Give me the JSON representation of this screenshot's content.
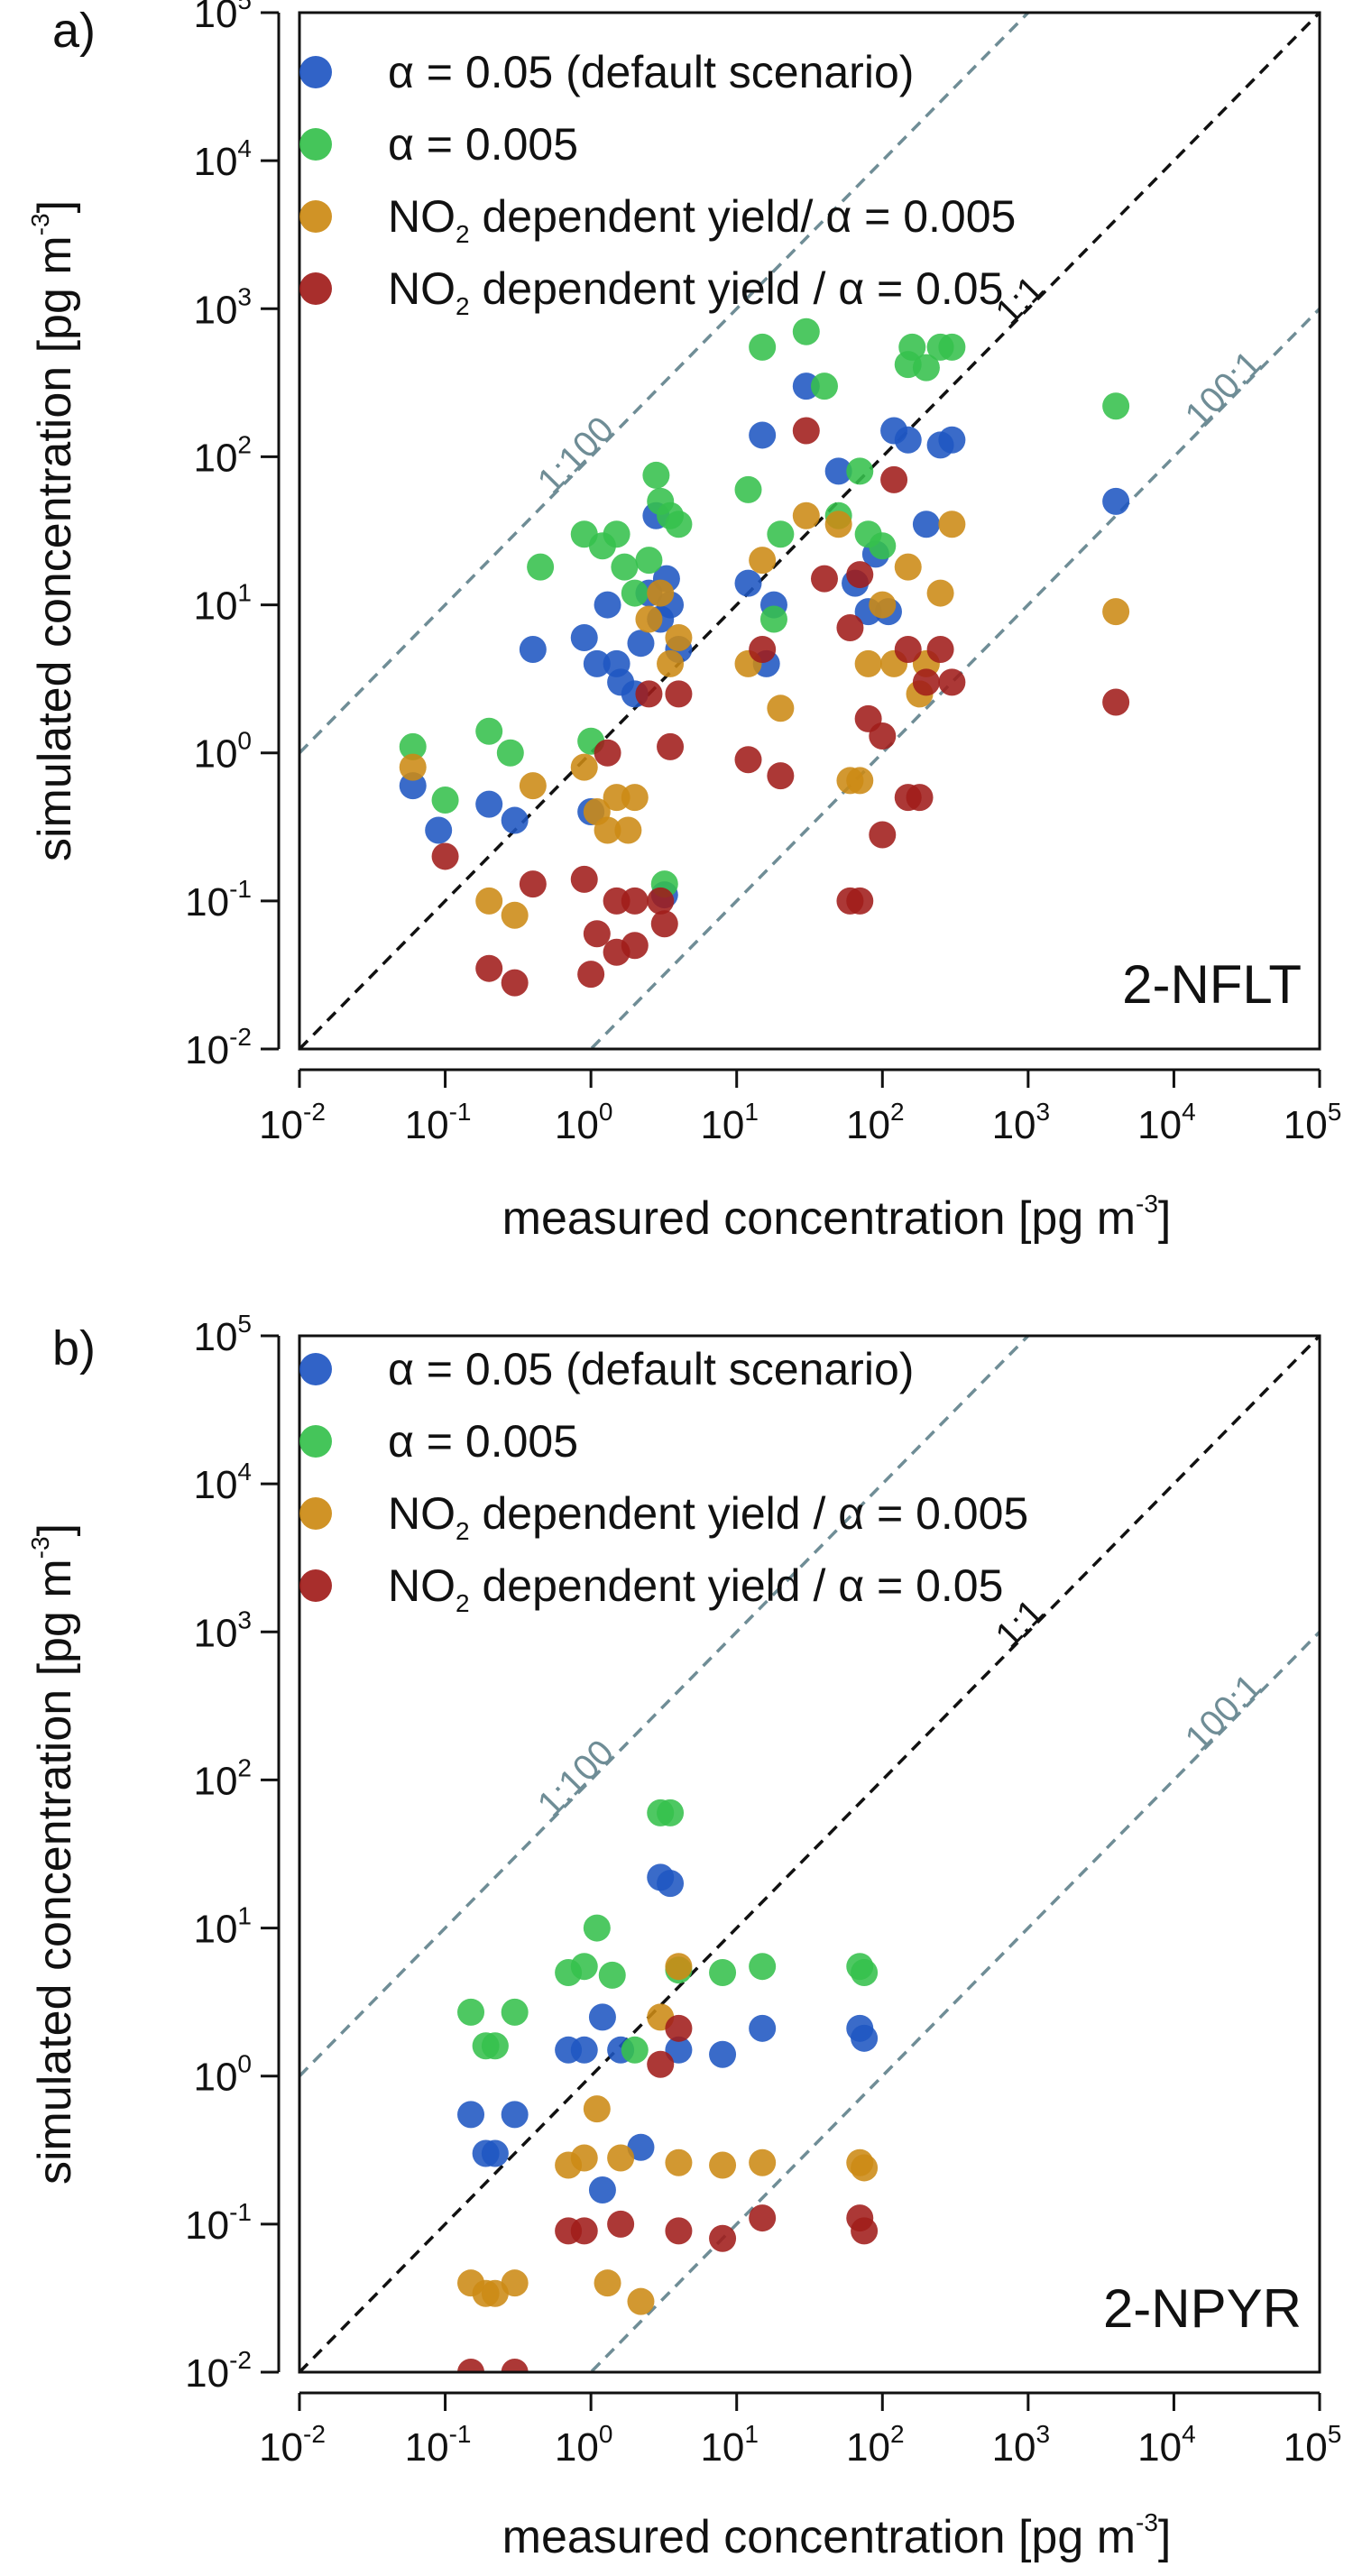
{
  "series_colors": {
    "default": "#1f56c2",
    "alpha005": "#35c04c",
    "no2_005": "#cc8a14",
    "no2_05": "#a11c1a"
  },
  "ref_line_colors": {
    "one_to_one": "#111111",
    "hundred": "#6f8d96"
  },
  "chart_data": [
    {
      "type": "scatter",
      "panel_label": "a)",
      "compound": "2-NFLT",
      "xlabel_main": "measured concentration [pg m",
      "xlabel_sup": "-3",
      "xlabel_end": "]",
      "ylabel_main": "simulated concentration [pg m",
      "ylabel_sup": "-3",
      "ylabel_end": "]",
      "xscale": "log",
      "yscale": "log",
      "xlim": [
        0.01,
        100000
      ],
      "ylim": [
        0.01,
        100000
      ],
      "tick_labels": [
        {
          "base": "10",
          "exp": "-2"
        },
        {
          "base": "10",
          "exp": "-1"
        },
        {
          "base": "10",
          "exp": "0"
        },
        {
          "base": "10",
          "exp": "1"
        },
        {
          "base": "10",
          "exp": "2"
        },
        {
          "base": "10",
          "exp": "3"
        },
        {
          "base": "10",
          "exp": "4"
        },
        {
          "base": "10",
          "exp": "5"
        }
      ],
      "ref_lines": [
        {
          "label": "1:100",
          "ratio": 100
        },
        {
          "label": "1:1",
          "ratio": 1
        },
        {
          "label": "100:1",
          "ratio": 0.01
        }
      ],
      "legend_position": "top-left",
      "legend": [
        {
          "key": "default",
          "main": "α = 0.05 (default scenario)",
          "sub": "",
          "rest": ""
        },
        {
          "key": "alpha005",
          "main": "α = 0.005",
          "sub": "",
          "rest": ""
        },
        {
          "key": "no2_005",
          "main": "NO",
          "sub": "2",
          "rest": " dependent yield/ α = 0.005"
        },
        {
          "key": "no2_05",
          "main": "NO",
          "sub": "2",
          "rest": " dependent  yield / α = 0.05"
        }
      ],
      "series": [
        {
          "key": "default",
          "points": [
            [
              0.06,
              0.6
            ],
            [
              0.09,
              0.3
            ],
            [
              0.2,
              0.45
            ],
            [
              0.3,
              0.35
            ],
            [
              0.4,
              5
            ],
            [
              0.9,
              6
            ],
            [
              1.0,
              0.4
            ],
            [
              1.1,
              4
            ],
            [
              1.3,
              10
            ],
            [
              1.5,
              4
            ],
            [
              1.6,
              3
            ],
            [
              2,
              2.5
            ],
            [
              2.2,
              5.5
            ],
            [
              2.5,
              12
            ],
            [
              2.8,
              40
            ],
            [
              3,
              8
            ],
            [
              3.3,
              15
            ],
            [
              3.5,
              10
            ],
            [
              3.2,
              0.11
            ],
            [
              4,
              5
            ],
            [
              12,
              14
            ],
            [
              16,
              4
            ],
            [
              18,
              10
            ],
            [
              15,
              140
            ],
            [
              30,
              300
            ],
            [
              50,
              80
            ],
            [
              65,
              14
            ],
            [
              80,
              9
            ],
            [
              90,
              22
            ],
            [
              110,
              9
            ],
            [
              120,
              150
            ],
            [
              150,
              130
            ],
            [
              200,
              35
            ],
            [
              250,
              120
            ],
            [
              300,
              130
            ],
            [
              4000,
              50
            ]
          ]
        },
        {
          "key": "alpha005",
          "points": [
            [
              0.06,
              1.1
            ],
            [
              0.1,
              0.48
            ],
            [
              0.2,
              1.4
            ],
            [
              0.28,
              1.0
            ],
            [
              0.45,
              18
            ],
            [
              0.9,
              30
            ],
            [
              1.0,
              1.2
            ],
            [
              1.2,
              25
            ],
            [
              1.5,
              30
            ],
            [
              1.7,
              18
            ],
            [
              2,
              12
            ],
            [
              2.5,
              20
            ],
            [
              2.8,
              75
            ],
            [
              3,
              50
            ],
            [
              3.2,
              0.13
            ],
            [
              3.5,
              40
            ],
            [
              4,
              35
            ],
            [
              12,
              60
            ],
            [
              15,
              550
            ],
            [
              18,
              8
            ],
            [
              20,
              30
            ],
            [
              30,
              700
            ],
            [
              40,
              300
            ],
            [
              50,
              40
            ],
            [
              70,
              80
            ],
            [
              80,
              30
            ],
            [
              100,
              25
            ],
            [
              150,
              420
            ],
            [
              160,
              550
            ],
            [
              200,
              400
            ],
            [
              250,
              550
            ],
            [
              300,
              550
            ],
            [
              4000,
              220
            ]
          ]
        },
        {
          "key": "no2_005",
          "points": [
            [
              0.06,
              0.8
            ],
            [
              0.2,
              0.1
            ],
            [
              0.3,
              0.08
            ],
            [
              0.4,
              0.6
            ],
            [
              0.9,
              0.8
            ],
            [
              1.1,
              0.4
            ],
            [
              1.3,
              0.3
            ],
            [
              1.5,
              0.5
            ],
            [
              1.8,
              0.3
            ],
            [
              2,
              0.5
            ],
            [
              2.5,
              8
            ],
            [
              3,
              12
            ],
            [
              3.5,
              4
            ],
            [
              4,
              6
            ],
            [
              12,
              4
            ],
            [
              15,
              20
            ],
            [
              20,
              2
            ],
            [
              30,
              40
            ],
            [
              50,
              35
            ],
            [
              60,
              0.65
            ],
            [
              70,
              0.65
            ],
            [
              80,
              4
            ],
            [
              100,
              10
            ],
            [
              120,
              4
            ],
            [
              150,
              18
            ],
            [
              180,
              2.5
            ],
            [
              200,
              4
            ],
            [
              250,
              12
            ],
            [
              300,
              35
            ],
            [
              4000,
              9
            ]
          ]
        },
        {
          "key": "no2_05",
          "points": [
            [
              0.1,
              0.2
            ],
            [
              0.2,
              0.035
            ],
            [
              0.3,
              0.028
            ],
            [
              0.4,
              0.13
            ],
            [
              0.9,
              0.14
            ],
            [
              1.0,
              0.032
            ],
            [
              1.1,
              0.06
            ],
            [
              1.3,
              1.0
            ],
            [
              1.5,
              0.1
            ],
            [
              1.5,
              0.045
            ],
            [
              2,
              0.1
            ],
            [
              2,
              0.05
            ],
            [
              2.5,
              2.5
            ],
            [
              3,
              0.1
            ],
            [
              3.2,
              0.07
            ],
            [
              3.5,
              1.1
            ],
            [
              4,
              2.5
            ],
            [
              12,
              0.9
            ],
            [
              15,
              5
            ],
            [
              20,
              0.7
            ],
            [
              30,
              150
            ],
            [
              40,
              15
            ],
            [
              60,
              0.1
            ],
            [
              60,
              7
            ],
            [
              70,
              0.1
            ],
            [
              70,
              16
            ],
            [
              80,
              1.7
            ],
            [
              100,
              1.3
            ],
            [
              100,
              0.28
            ],
            [
              120,
              70
            ],
            [
              150,
              5
            ],
            [
              150,
              0.5
            ],
            [
              180,
              0.5
            ],
            [
              200,
              3
            ],
            [
              250,
              5
            ],
            [
              300,
              3
            ],
            [
              4000,
              2.2
            ]
          ]
        }
      ]
    },
    {
      "type": "scatter",
      "panel_label": "b)",
      "compound": "2-NPYR",
      "xlabel_main": "measured concentration [pg m",
      "xlabel_sup": "-3",
      "xlabel_end": "]",
      "ylabel_main": "simulated concentration [pg m",
      "ylabel_sup": "-3",
      "ylabel_end": "]",
      "xscale": "log",
      "yscale": "log",
      "xlim": [
        0.01,
        100000
      ],
      "ylim": [
        0.01,
        100000
      ],
      "tick_labels": [
        {
          "base": "10",
          "exp": "-2"
        },
        {
          "base": "10",
          "exp": "-1"
        },
        {
          "base": "10",
          "exp": "0"
        },
        {
          "base": "10",
          "exp": "1"
        },
        {
          "base": "10",
          "exp": "2"
        },
        {
          "base": "10",
          "exp": "3"
        },
        {
          "base": "10",
          "exp": "4"
        },
        {
          "base": "10",
          "exp": "5"
        }
      ],
      "ref_lines": [
        {
          "label": "1:100",
          "ratio": 100
        },
        {
          "label": "1:1",
          "ratio": 1
        },
        {
          "label": "100:1",
          "ratio": 0.01
        }
      ],
      "legend_position": "top-left",
      "legend": [
        {
          "key": "default",
          "main": "α = 0.05 (default scenario)",
          "sub": "",
          "rest": ""
        },
        {
          "key": "alpha005",
          "main": "α = 0.005",
          "sub": "",
          "rest": ""
        },
        {
          "key": "no2_005",
          "main": "NO",
          "sub": "2",
          "rest": "  dependent   yield / α = 0.005"
        },
        {
          "key": "no2_05",
          "main": "NO",
          "sub": "2",
          "rest": "  dependent  yield / α = 0.05"
        }
      ],
      "series": [
        {
          "key": "default",
          "points": [
            [
              0.15,
              0.55
            ],
            [
              0.19,
              0.3
            ],
            [
              0.22,
              0.3
            ],
            [
              0.3,
              0.55
            ],
            [
              0.7,
              1.5
            ],
            [
              0.9,
              1.5
            ],
            [
              1.2,
              2.5
            ],
            [
              1.2,
              0.17
            ],
            [
              1.6,
              1.5
            ],
            [
              2.2,
              0.33
            ],
            [
              3,
              22
            ],
            [
              3.5,
              20
            ],
            [
              4,
              1.5
            ],
            [
              8,
              1.4
            ],
            [
              15,
              2.1
            ],
            [
              70,
              2.1
            ],
            [
              75,
              1.8
            ]
          ]
        },
        {
          "key": "alpha005",
          "points": [
            [
              0.15,
              2.7
            ],
            [
              0.19,
              1.6
            ],
            [
              0.22,
              1.6
            ],
            [
              0.3,
              2.7
            ],
            [
              0.7,
              5
            ],
            [
              0.9,
              5.5
            ],
            [
              1.1,
              10
            ],
            [
              1.4,
              4.8
            ],
            [
              2,
              1.5
            ],
            [
              3,
              60
            ],
            [
              3.5,
              60
            ],
            [
              4,
              5.2
            ],
            [
              8,
              5
            ],
            [
              15,
              5.5
            ],
            [
              70,
              5.5
            ],
            [
              75,
              5
            ]
          ]
        },
        {
          "key": "no2_005",
          "points": [
            [
              0.15,
              0.04
            ],
            [
              0.19,
              0.034
            ],
            [
              0.22,
              0.034
            ],
            [
              0.3,
              0.04
            ],
            [
              0.7,
              0.25
            ],
            [
              0.9,
              0.28
            ],
            [
              1.1,
              0.6
            ],
            [
              1.3,
              0.04
            ],
            [
              1.6,
              0.28
            ],
            [
              2.2,
              0.03
            ],
            [
              3,
              2.5
            ],
            [
              4,
              5.5
            ],
            [
              4,
              0.26
            ],
            [
              8,
              0.25
            ],
            [
              15,
              0.26
            ],
            [
              70,
              0.26
            ],
            [
              75,
              0.24
            ]
          ]
        },
        {
          "key": "no2_05",
          "points": [
            [
              0.15,
              0.01
            ],
            [
              0.3,
              0.01
            ],
            [
              0.7,
              0.09
            ],
            [
              0.9,
              0.09
            ],
            [
              1.6,
              0.1
            ],
            [
              3,
              1.2
            ],
            [
              4,
              2.1
            ],
            [
              4,
              0.09
            ],
            [
              8,
              0.08
            ],
            [
              15,
              0.11
            ],
            [
              70,
              0.11
            ],
            [
              75,
              0.09
            ]
          ]
        }
      ]
    }
  ]
}
